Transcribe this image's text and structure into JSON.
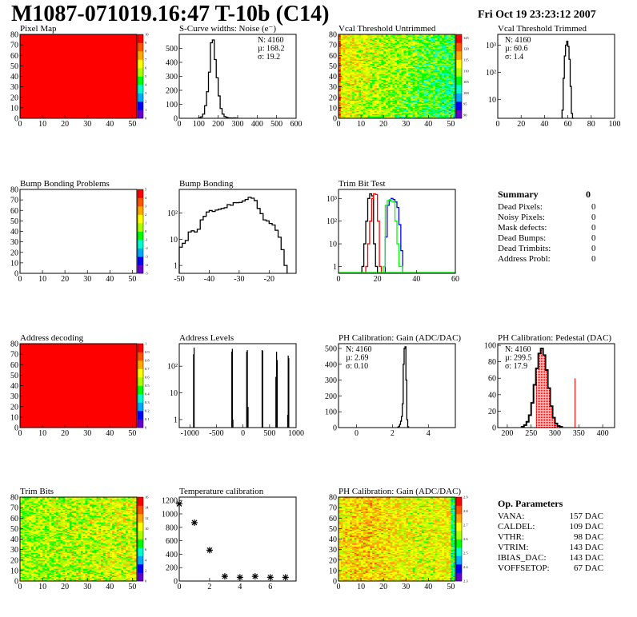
{
  "header": {
    "title": "M1087-071019.16:47 T-10b (C14)",
    "date": "Fri Oct 19 23:23:12 2007"
  },
  "summary": {
    "title": "Summary",
    "total": "0",
    "rows": [
      {
        "label": "Dead Pixels:",
        "value": "0"
      },
      {
        "label": "Noisy Pixels:",
        "value": "0"
      },
      {
        "label": "Mask defects:",
        "value": "0"
      },
      {
        "label": "Dead Bumps:",
        "value": "0"
      },
      {
        "label": "Dead Trimbits:",
        "value": "0"
      },
      {
        "label": "Address Probl:",
        "value": "0"
      }
    ]
  },
  "op_parameters": {
    "title": "Op. Parameters",
    "rows": [
      {
        "label": "VANA:",
        "value": "157 DAC"
      },
      {
        "label": "CALDEL:",
        "value": "109 DAC"
      },
      {
        "label": "VTHR:",
        "value": "98 DAC"
      },
      {
        "label": "VTRIM:",
        "value": "143 DAC"
      },
      {
        "label": "IBIAS_DAC:",
        "value": "143 DAC"
      },
      {
        "label": "VOFFSETOP:",
        "value": "67 DAC"
      }
    ]
  },
  "colors": {
    "palette": [
      "#6600cc",
      "#0000ff",
      "#00aaff",
      "#00ffcc",
      "#00ff00",
      "#aaff00",
      "#ffff00",
      "#ffaa00",
      "#ff5500",
      "#ff0000"
    ],
    "red": "#ff0000",
    "green": "#00ff00",
    "blue": "#0000ff"
  },
  "chart_data": [
    {
      "title": "Pixel Map",
      "type": "heatmap",
      "xlim": [
        0,
        52
      ],
      "ylim": [
        0,
        80
      ],
      "xticks": [
        0,
        10,
        20,
        30,
        40,
        50
      ],
      "yticks": [
        0,
        10,
        20,
        30,
        40,
        50,
        60,
        70,
        80
      ],
      "zlim": [
        0,
        10
      ],
      "zticks": [
        "0",
        "1",
        "2",
        "3",
        "4",
        "5",
        "6",
        "7",
        "8",
        "9",
        "10"
      ],
      "fill": "uniform",
      "value": 10
    },
    {
      "title": "S-Curve widths: Noise (e⁻)",
      "type": "bar",
      "xlim": [
        0,
        600
      ],
      "ylim": [
        0,
        600
      ],
      "xticks": [
        0,
        100,
        200,
        300,
        400,
        500,
        600
      ],
      "yticks": [
        0,
        100,
        200,
        300,
        400,
        500
      ],
      "bins": {
        "start": 100,
        "width": 10,
        "values": [
          5,
          10,
          30,
          90,
          190,
          330,
          540,
          560,
          420,
          290,
          160,
          70,
          30,
          12,
          6,
          3,
          2,
          1,
          3,
          1
        ]
      },
      "stats": [
        {
          "text": "N: 4160"
        },
        {
          "text": "µ: 168.2"
        },
        {
          "text": "σ: 19.2"
        }
      ]
    },
    {
      "title": "Vcal Threshold Untrimmed",
      "type": "heatmap",
      "xlim": [
        0,
        52
      ],
      "ylim": [
        0,
        80
      ],
      "xticks": [
        0,
        10,
        20,
        30,
        40,
        50
      ],
      "yticks": [
        0,
        10,
        20,
        30,
        40,
        50,
        60,
        70,
        80
      ],
      "zlim": [
        86,
        130
      ],
      "zticks": [
        "90",
        "95",
        "100",
        "105",
        "110",
        "115",
        "120",
        "125"
      ],
      "fill": "noise"
    },
    {
      "title": "Vcal Threshold Trimmed",
      "type": "bar",
      "log_y": true,
      "xlim": [
        0,
        100
      ],
      "ylim": [
        2,
        2500
      ],
      "xticks": [
        0,
        20,
        40,
        60,
        80,
        100
      ],
      "yticks": [
        10,
        100,
        1000
      ],
      "ytick_labels": [
        "10",
        "10²",
        "10³"
      ],
      "bins": {
        "start": 55,
        "width": 1,
        "values": [
          4,
          60,
          400,
          1000,
          1400,
          900,
          300,
          30,
          3,
          0
        ]
      },
      "stats": [
        {
          "text": "N: 4160"
        },
        {
          "text": "µ: 60.6"
        },
        {
          "text": "σ:  1.4"
        }
      ]
    },
    {
      "title": "Bump Bonding Problems",
      "type": "heatmap",
      "xlim": [
        0,
        52
      ],
      "ylim": [
        0,
        80
      ],
      "xticks": [
        0,
        10,
        20,
        30,
        40,
        50
      ],
      "yticks": [
        0,
        10,
        20,
        30,
        40,
        50,
        60,
        70,
        80
      ],
      "zlim": [
        -5,
        5
      ],
      "zticks": [
        "-5",
        "-4",
        "-3",
        "-2",
        "-1",
        "0",
        "1",
        "2",
        "3",
        "4",
        "5"
      ],
      "fill": "empty"
    },
    {
      "title": "Bump Bonding",
      "type": "bar",
      "log_y": true,
      "xlim": [
        -50,
        -11
      ],
      "ylim": [
        0.5,
        800
      ],
      "xticks": [
        -50,
        -40,
        -30,
        -20
      ],
      "yticks": [
        1,
        10,
        100
      ],
      "ytick_labels": [
        "1",
        "10",
        "10²"
      ],
      "bins": {
        "start": -50,
        "width": 1,
        "values": [
          5,
          7,
          9,
          19,
          21,
          19,
          24,
          55,
          75,
          110,
          125,
          115,
          130,
          140,
          150,
          160,
          210,
          200,
          250,
          250,
          255,
          290,
          330,
          400,
          370,
          300,
          150,
          95,
          55,
          50,
          40,
          35,
          22,
          12,
          4,
          1
        ]
      }
    },
    {
      "title": "Trim Bit Test",
      "type": "bar",
      "log_y": true,
      "xlim": [
        0,
        60
      ],
      "ylim": [
        0.5,
        2500
      ],
      "xticks": [
        0,
        20,
        40,
        60
      ],
      "yticks": [
        1,
        10,
        100,
        1000
      ],
      "ytick_labels": [
        "1",
        "10",
        "10²",
        "10³"
      ],
      "series": [
        {
          "color": "#000000",
          "start": 12,
          "width": 1,
          "values": [
            1,
            10,
            100,
            1000,
            1600,
            1300,
            10,
            1
          ]
        },
        {
          "color": "#ff0000",
          "start": 14,
          "width": 1,
          "values": [
            1,
            10,
            100,
            1000,
            1600,
            1500,
            100,
            1
          ]
        },
        {
          "color": "#0000ff",
          "start": 24,
          "width": 1,
          "values": [
            20,
            500,
            800,
            1000,
            900,
            700,
            400,
            70,
            5
          ]
        },
        {
          "color": "#00ff00",
          "start": 23,
          "width": 1,
          "values": [
            1,
            500,
            800,
            900,
            750,
            700,
            100,
            10,
            1,
            1
          ]
        }
      ]
    },
    {
      "title": "Address decoding",
      "type": "heatmap",
      "xlim": [
        0,
        52
      ],
      "ylim": [
        0,
        80
      ],
      "xticks": [
        0,
        10,
        20,
        30,
        40,
        50
      ],
      "yticks": [
        0,
        10,
        20,
        30,
        40,
        50,
        60,
        70,
        80
      ],
      "zlim": [
        0,
        1
      ],
      "zticks": [
        "0",
        "0.1",
        "0.2",
        "0.3",
        "0.4",
        "0.5",
        "0.6",
        "0.7",
        "0.8",
        "0.9",
        "1"
      ],
      "fill": "uniform",
      "value": 1
    },
    {
      "title": "Address Levels",
      "type": "bar",
      "log_y": true,
      "xlim": [
        -1200,
        1000
      ],
      "ylim": [
        0.5,
        700
      ],
      "xticks": [
        -1000,
        -500,
        0,
        500,
        1000
      ],
      "yticks": [
        1,
        10,
        100
      ],
      "ytick_labels": [
        "1",
        "10",
        "10²"
      ],
      "spikes": [
        [
          -930,
          280
        ],
        [
          -920,
          500
        ],
        [
          -210,
          350
        ],
        [
          -200,
          450
        ],
        [
          -190,
          1
        ],
        [
          70,
          350
        ],
        [
          82,
          400
        ],
        [
          95,
          3
        ],
        [
          360,
          400
        ],
        [
          372,
          380
        ],
        [
          620,
          40
        ],
        [
          632,
          350
        ],
        [
          645,
          170
        ],
        [
          842,
          1.5
        ],
        [
          852,
          250
        ],
        [
          862,
          200
        ]
      ]
    },
    {
      "title": "PH Calibration: Gain (ADC/DAC)",
      "type": "bar",
      "xlim": [
        -1,
        5.5
      ],
      "ylim": [
        0,
        530
      ],
      "xticks": [
        0,
        2,
        4
      ],
      "yticks": [
        0,
        100,
        200,
        300,
        400,
        500
      ],
      "bins": {
        "start": 2.3,
        "width": 0.05,
        "values": [
          3,
          8,
          20,
          40,
          70,
          150,
          400,
          500,
          510,
          300,
          50,
          5
        ]
      },
      "stats": [
        {
          "text": "N: 4160"
        },
        {
          "text": "µ: 2.69"
        },
        {
          "text": "σ: 0.10"
        }
      ]
    },
    {
      "title": "PH Calibration: Pedestal (DAC)",
      "type": "bar",
      "xlim": [
        180,
        425
      ],
      "ylim": [
        0,
        102
      ],
      "xticks": [
        200,
        250,
        300,
        350,
        400
      ],
      "yticks": [
        0,
        20,
        40,
        60,
        80,
        100
      ],
      "bins": {
        "start": 230,
        "width": 5,
        "values": [
          1,
          3,
          7,
          15,
          30,
          52,
          72,
          90,
          96,
          88,
          70,
          48,
          26,
          12,
          5,
          2,
          1
        ]
      },
      "fit_range": [
        261,
        342
      ],
      "fit_line_height": 60,
      "stats": [
        {
          "text": "N: 4160"
        },
        {
          "text": "µ: 299.5",
          "color": "#ff0000"
        },
        {
          "text": "σ: 17.9",
          "color": "#ff0000"
        }
      ]
    },
    {
      "title": "Trim Bits",
      "type": "heatmap",
      "xlim": [
        0,
        52
      ],
      "ylim": [
        0,
        80
      ],
      "xticks": [
        0,
        10,
        20,
        30,
        40,
        50
      ],
      "yticks": [
        0,
        10,
        20,
        30,
        40,
        50,
        60,
        70,
        80
      ],
      "zlim": [
        0,
        16
      ],
      "zticks": [
        "0",
        "2",
        "4",
        "6",
        "8",
        "10",
        "12",
        "14",
        "16"
      ],
      "fill": "noise"
    },
    {
      "title": "Temperature calibration",
      "type": "scatter",
      "xlim": [
        0,
        7.7
      ],
      "ylim": [
        0,
        1250
      ],
      "xticks": [
        0,
        2,
        4,
        6
      ],
      "yticks": [
        0,
        200,
        400,
        600,
        800,
        1000,
        1200
      ],
      "points": [
        [
          0,
          1150
        ],
        [
          1,
          870
        ],
        [
          2,
          460
        ],
        [
          3,
          70
        ],
        [
          4,
          55
        ],
        [
          5,
          70
        ],
        [
          6,
          55
        ],
        [
          7,
          55
        ]
      ]
    },
    {
      "title": "PH Calibration: Gain (ADC/DAC)",
      "type": "heatmap",
      "xlim": [
        0,
        52
      ],
      "ylim": [
        0,
        80
      ],
      "xticks": [
        0,
        10,
        20,
        30,
        40,
        50
      ],
      "yticks": [
        0,
        10,
        20,
        30,
        40,
        50,
        60,
        70,
        80
      ],
      "zlim": [
        2.25,
        2.97
      ],
      "zticks": [
        "2.3",
        "2.4",
        "2.5",
        "2.6",
        "2.7",
        "2.8",
        "2.9"
      ],
      "fill": "noise"
    }
  ]
}
